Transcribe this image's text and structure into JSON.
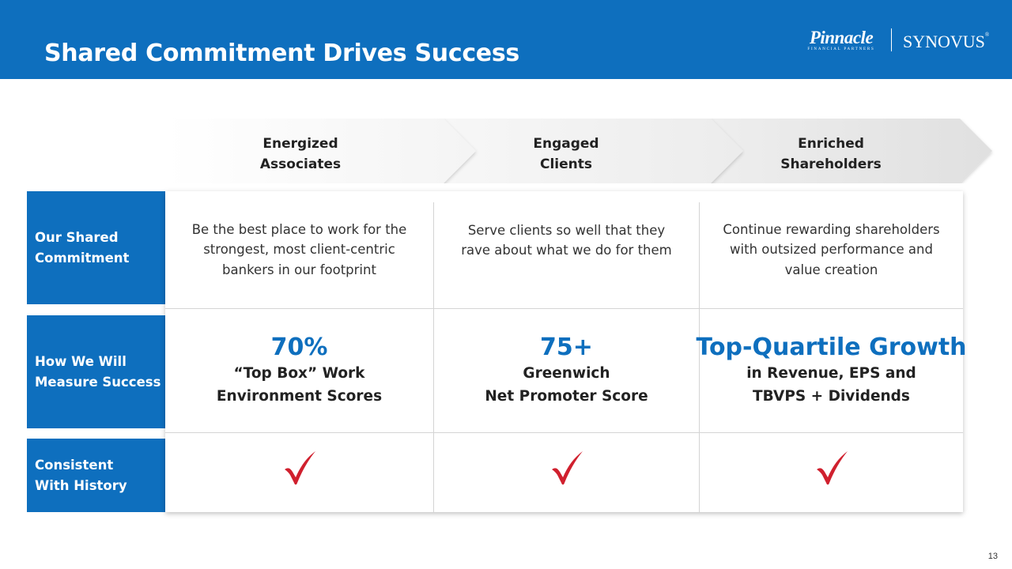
{
  "header": {
    "title": "Shared Commitment Drives Success",
    "logo_pinnacle": "Pinnacle",
    "logo_pinnacle_sub": "FINANCIAL PARTNERS",
    "logo_synovus": "SYNOVUS",
    "accent_color": "#0e6fbe"
  },
  "chevrons": [
    {
      "label": "Energized\nAssociates"
    },
    {
      "label": "Engaged\nClients"
    },
    {
      "label": "Enriched\nShareholders"
    }
  ],
  "rows": {
    "commitment": {
      "label": "Our Shared\nCommitment",
      "cells": [
        "Be the best place to work for the\nstrongest, most client-centric\nbankers in our footprint",
        "Serve clients so well that they\nrave about what we do for them",
        "Continue rewarding shareholders\nwith outsized performance and\nvalue creation"
      ]
    },
    "measure": {
      "label": "How We Will\nMeasure Success",
      "cells": [
        {
          "big": "70%",
          "sub": "“Top Box” Work\nEnvironment Scores"
        },
        {
          "big": "75+",
          "sub": "Greenwich\nNet Promoter Score"
        },
        {
          "big": "Top-Quartile Growth",
          "sub": "in Revenue, EPS and\nTBVPS + Dividends"
        }
      ]
    },
    "history": {
      "label": "Consistent\nWith History",
      "check_icon": "checkmark-icon",
      "check_color": "#d0202e"
    }
  },
  "page_number": "13"
}
